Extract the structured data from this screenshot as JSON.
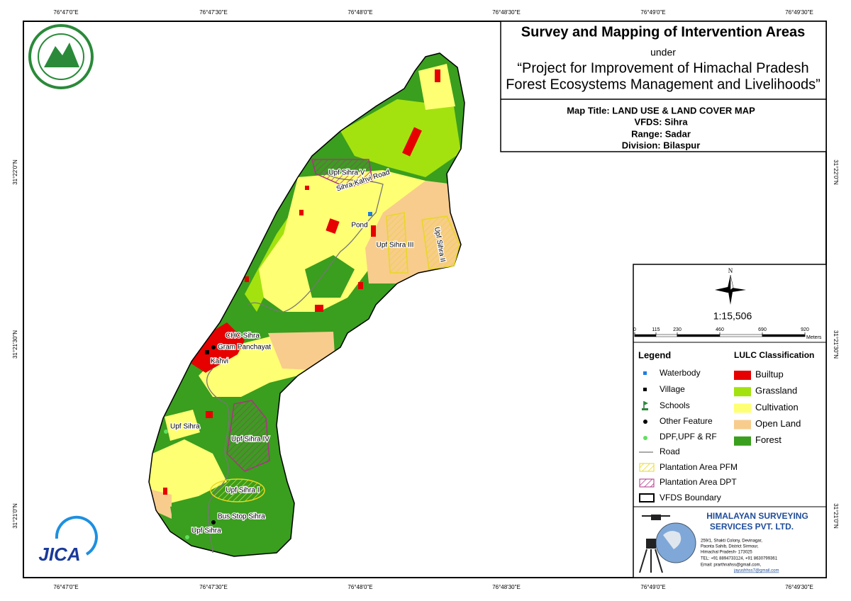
{
  "coordinates": {
    "longitude": [
      "76°47'0\"E",
      "76°47'30\"E",
      "76°48'0\"E",
      "76°48'30\"E",
      "76°49'0\"E",
      "76°49'30\"E"
    ],
    "latitude": [
      "31°22'0\"N",
      "31°21'30\"N",
      "31°21'0\"N"
    ]
  },
  "title_block": {
    "title": "Survey and Mapping of Intervention Areas",
    "subtitle": "under",
    "project": [
      "“Project for Improvement of Himachal Pradesh",
      "Forest Ecosystems Management and Livelihoods”"
    ]
  },
  "map_info": {
    "map_title": "Map Title: LAND USE & LAND COVER MAP",
    "vfds": "VFDS: Sihra",
    "range": "Range: Sadar",
    "division": "Division: Bilaspur"
  },
  "north_arrow": "N",
  "scale": {
    "ratio": "1:15,506",
    "bar": [
      0,
      115,
      230,
      460,
      690,
      920
    ],
    "unit": "Meters"
  },
  "legend": {
    "title": "Legend",
    "items": [
      "Waterbody",
      "Village",
      "Schools",
      "Other Feature",
      "DPF,UPF & RF",
      "Road",
      "Plantation Area PFM",
      "Plantation Area DPT",
      "VFDS Boundary"
    ]
  },
  "lulc": {
    "title": "LULC Classification",
    "classes": [
      {
        "label": "Builtup",
        "color": "#e60000"
      },
      {
        "label": "Grassland",
        "color": "#a3e20f"
      },
      {
        "label": "Cultivation",
        "color": "#ffff73"
      },
      {
        "label": "Open Land",
        "color": "#f8cc8c"
      },
      {
        "label": "Forest",
        "color": "#3a9e1e"
      }
    ]
  },
  "company": {
    "name": [
      "HIMALAYAN SURVEYING",
      "SERVICES PVT. LTD."
    ],
    "address": [
      "259/1, Shakti Colony, Devinagar,",
      "Paonta Sahib, District Sirmour,",
      "Himachal Pradesh- 173025",
      "TEL: +91 8894733124, +91 8630799361"
    ],
    "email": [
      "Email: prarthnahss@gmail.com,",
      "jayushhss7@gmail.com"
    ]
  },
  "map_labels": [
    "Upf Sihra V",
    "Sihra-Kahvi Road",
    "Pond",
    "Upf Sihra III",
    "Upf Sihra II",
    "CHC Sihra",
    "Gram Panchayat",
    "Kahvi",
    "Upf Sihra",
    "Upf Sihra IV",
    "Upf Sihra I",
    "Bus Stop Sihra",
    "Upf Sihra"
  ],
  "logo": "JICA"
}
